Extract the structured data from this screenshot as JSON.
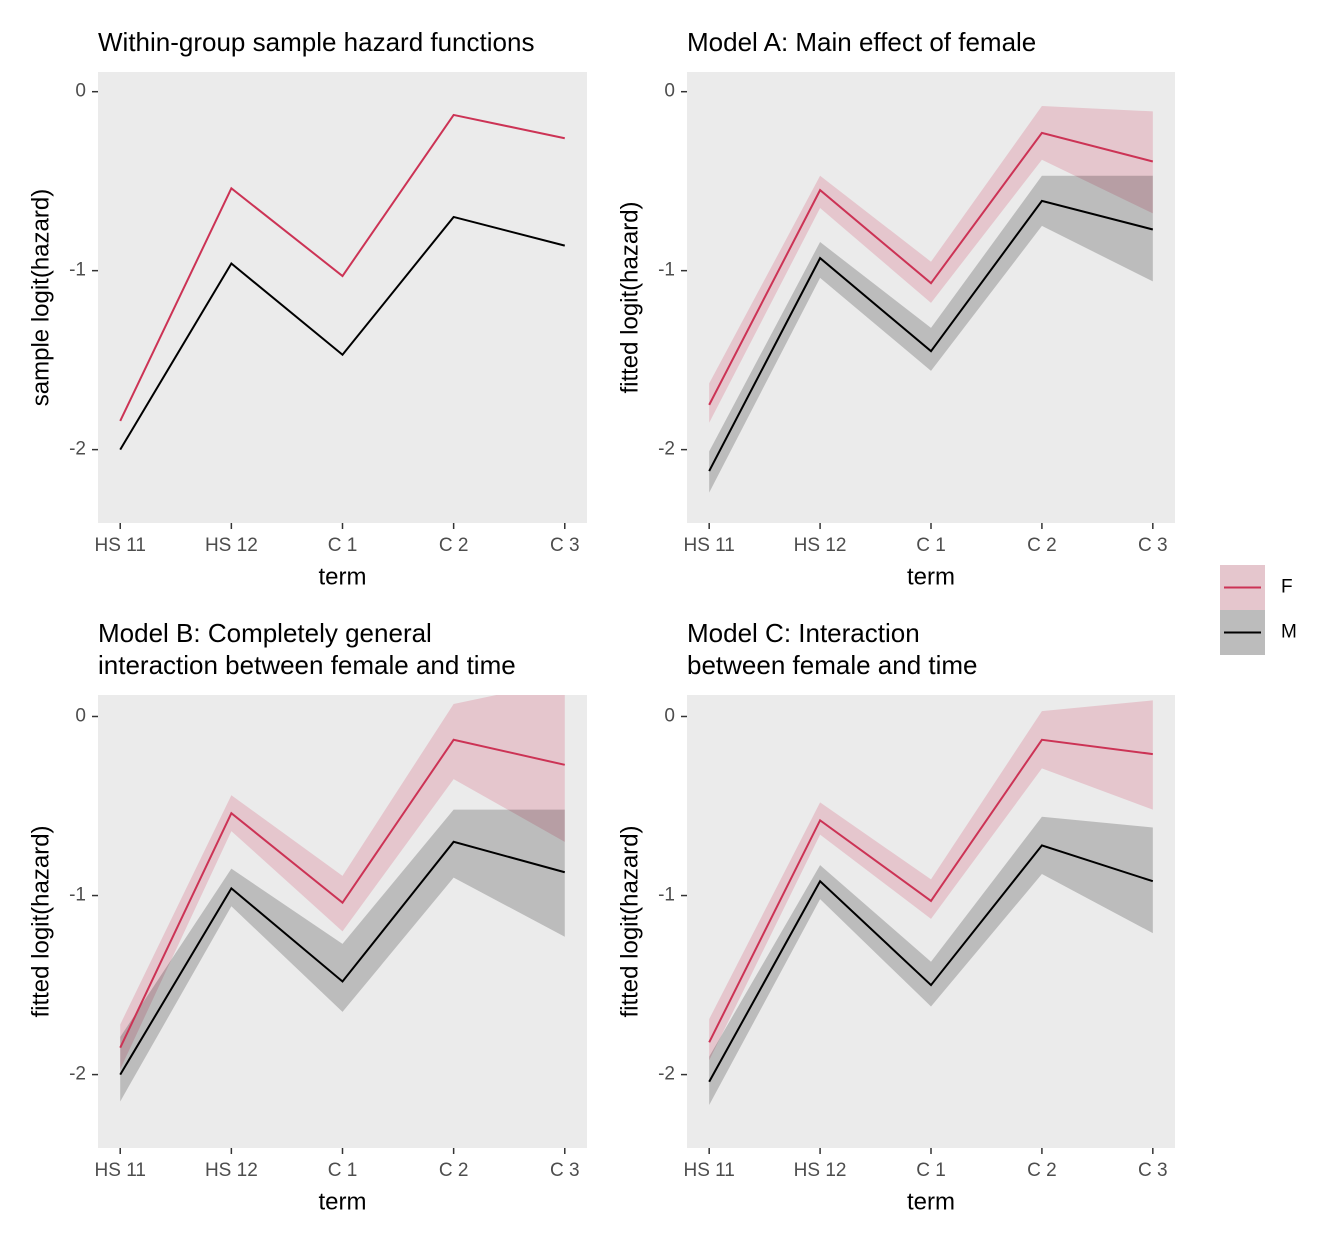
{
  "chart_data": [
    {
      "type": "line",
      "title": "Within-group sample hazard functions",
      "x_label": "term",
      "y_label": "sample logit(hazard)",
      "categories": [
        "HS 11",
        "HS 12",
        "C 1",
        "C 2",
        "C 3"
      ],
      "ylim": [
        -2.41,
        0.11
      ],
      "yticks": [
        -2,
        -1,
        0
      ],
      "grid": false,
      "series": [
        {
          "name": "F",
          "color": "#cc3355",
          "values": [
            -1.84,
            -0.54,
            -1.03,
            -0.13,
            -0.26
          ]
        },
        {
          "name": "M",
          "color": "#000000",
          "values": [
            -2.0,
            -0.96,
            -1.47,
            -0.7,
            -0.86
          ]
        }
      ]
    },
    {
      "type": "line",
      "title": "Model A: Main effect of female",
      "x_label": "term",
      "y_label": "fitted logit(hazard)",
      "categories": [
        "HS 11",
        "HS 12",
        "C 1",
        "C 2",
        "C 3"
      ],
      "ylim": [
        -2.41,
        0.11
      ],
      "yticks": [
        -2,
        -1,
        0
      ],
      "grid": false,
      "legend": "right",
      "series": [
        {
          "name": "F",
          "color": "#cc3355",
          "values": [
            -1.75,
            -0.55,
            -1.07,
            -0.23,
            -0.39
          ],
          "lower": [
            -1.85,
            -0.65,
            -1.18,
            -0.38,
            -0.68
          ],
          "upper": [
            -1.63,
            -0.47,
            -0.95,
            -0.08,
            -0.11
          ]
        },
        {
          "name": "M",
          "color": "#000000",
          "values": [
            -2.12,
            -0.93,
            -1.45,
            -0.61,
            -0.77
          ],
          "lower": [
            -2.24,
            -1.04,
            -1.56,
            -0.75,
            -1.06
          ],
          "upper": [
            -2.01,
            -0.84,
            -1.32,
            -0.47,
            -0.47
          ]
        }
      ]
    },
    {
      "type": "line",
      "title": "Model B: Completely general\ninteraction between female and time",
      "x_label": "term",
      "y_label": "fitted logit(hazard)",
      "categories": [
        "HS 11",
        "HS 12",
        "C 1",
        "C 2",
        "C 3"
      ],
      "ylim": [
        -2.41,
        0.12
      ],
      "yticks": [
        -2,
        -1,
        0
      ],
      "grid": false,
      "series": [
        {
          "name": "F",
          "color": "#cc3355",
          "values": [
            -1.85,
            -0.54,
            -1.04,
            -0.13,
            -0.27
          ],
          "lower": [
            -1.97,
            -0.64,
            -1.2,
            -0.35,
            -0.7
          ],
          "upper": [
            -1.72,
            -0.44,
            -0.89,
            0.07,
            0.2
          ]
        },
        {
          "name": "M",
          "color": "#000000",
          "values": [
            -2.0,
            -0.96,
            -1.48,
            -0.7,
            -0.87
          ],
          "lower": [
            -2.15,
            -1.06,
            -1.65,
            -0.9,
            -1.23
          ],
          "upper": [
            -1.79,
            -0.85,
            -1.27,
            -0.52,
            -0.52
          ]
        }
      ]
    },
    {
      "type": "line",
      "title": "Model C: Interaction\nbetween female and time",
      "x_label": "term",
      "y_label": "fitted logit(hazard)",
      "categories": [
        "HS 11",
        "HS 12",
        "C 1",
        "C 2",
        "C 3"
      ],
      "ylim": [
        -2.41,
        0.12
      ],
      "yticks": [
        -2,
        -1,
        0
      ],
      "grid": false,
      "series": [
        {
          "name": "F",
          "color": "#cc3355",
          "values": [
            -1.82,
            -0.58,
            -1.03,
            -0.13,
            -0.21
          ],
          "lower": [
            -1.92,
            -0.66,
            -1.13,
            -0.29,
            -0.52
          ],
          "upper": [
            -1.69,
            -0.48,
            -0.91,
            0.03,
            0.09
          ]
        },
        {
          "name": "M",
          "color": "#000000",
          "values": [
            -2.04,
            -0.92,
            -1.5,
            -0.72,
            -0.92
          ],
          "lower": [
            -2.17,
            -1.02,
            -1.62,
            -0.88,
            -1.21
          ],
          "upper": [
            -1.9,
            -0.83,
            -1.37,
            -0.56,
            -0.62
          ]
        }
      ]
    }
  ]
}
